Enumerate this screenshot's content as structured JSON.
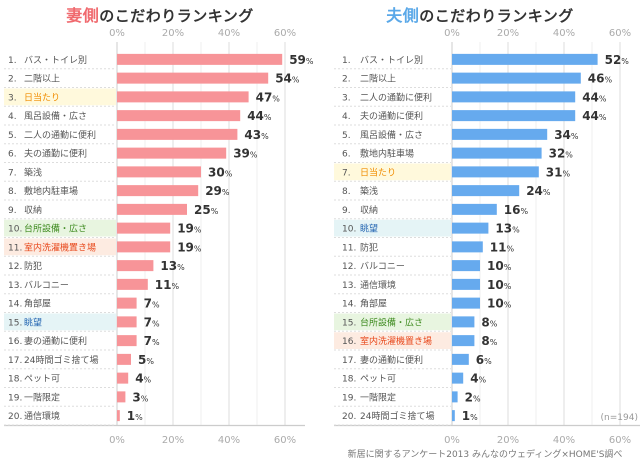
{
  "colors": {
    "wife_bar": "#f79498",
    "husband_bar": "#66aaee",
    "wife_accent": "#f0696e",
    "husband_accent": "#5aa8e8",
    "highlight_yellow_bg": "#fff9dc",
    "highlight_yellow_text": "#f08c00",
    "highlight_green_bg": "#e8f5e0",
    "highlight_green_text": "#3d8a1e",
    "highlight_orange_bg": "#fdebe1",
    "highlight_orange_text": "#e8481c",
    "highlight_blue_bg": "#e5f4f6",
    "highlight_blue_text": "#2a6ab4"
  },
  "footer": "新居に関するアンケート2013 みんなのウェディング×HOME'S調べ",
  "chart_data": [
    {
      "type": "bar",
      "orientation": "horizontal",
      "title": "妻側のこだわりランキング",
      "title_accent": "妻側",
      "title_rest": "のこだわりランキング",
      "xlabel": "",
      "ylabel": "",
      "xlim": [
        0,
        60
      ],
      "xticks": [
        "0%",
        "20%",
        "40%",
        "60%"
      ],
      "grid": true,
      "value_suffix": "%",
      "ranks": [
        "1.",
        "2.",
        "3.",
        "4.",
        "5.",
        "6.",
        "7.",
        "8.",
        "9.",
        "10.",
        "11.",
        "12.",
        "13.",
        "14.",
        "15.",
        "16.",
        "17.",
        "18.",
        "19.",
        "20."
      ],
      "categories": [
        "バス・トイレ別",
        "二階以上",
        "日当たり",
        "風呂設備・広さ",
        "二人の通勤に便利",
        "夫の通勤に便利",
        "築浅",
        "敷地内駐車場",
        "収納",
        "台所設備・広さ",
        "室内洗濯機置き場",
        "防犯",
        "バルコニー",
        "角部屋",
        "眺望",
        "妻の通勤に便利",
        "24時間ゴミ捨て場",
        "ペット可",
        "一階限定",
        "通信環境"
      ],
      "values": [
        59,
        54,
        47,
        44,
        43,
        39,
        30,
        29,
        25,
        19,
        19,
        13,
        11,
        7,
        7,
        7,
        5,
        4,
        3,
        1
      ],
      "highlights": {
        "2": "yellow",
        "9": "green",
        "10": "orange",
        "14": "blue"
      }
    },
    {
      "type": "bar",
      "orientation": "horizontal",
      "title": "夫側のこだわりランキング",
      "title_accent": "夫側",
      "title_rest": "のこだわりランキング",
      "xlabel": "",
      "ylabel": "",
      "xlim": [
        0,
        60
      ],
      "xticks": [
        "0%",
        "20%",
        "40%",
        "60%"
      ],
      "grid": true,
      "value_suffix": "%",
      "note": "(n=194)",
      "ranks": [
        "1.",
        "2.",
        "3.",
        "4.",
        "5.",
        "6.",
        "7.",
        "8.",
        "9.",
        "10.",
        "11.",
        "12.",
        "13.",
        "14.",
        "15.",
        "16.",
        "17.",
        "18.",
        "19.",
        "20."
      ],
      "categories": [
        "バス・トイレ別",
        "二階以上",
        "二人の通勤に便利",
        "夫の通勤に便利",
        "風呂設備・広さ",
        "敷地内駐車場",
        "日当たり",
        "築浅",
        "収納",
        "眺望",
        "防犯",
        "バルコニー",
        "通信環境",
        "角部屋",
        "台所設備・広さ",
        "室内洗濯機置き場",
        "妻の通勤に便利",
        "ペット可",
        "一階限定",
        "24時間ゴミ捨て場"
      ],
      "values": [
        52,
        46,
        44,
        44,
        34,
        32,
        31,
        24,
        16,
        13,
        11,
        10,
        10,
        10,
        8,
        8,
        6,
        4,
        2,
        1
      ],
      "highlights": {
        "6": "yellow",
        "9": "blue",
        "14": "green",
        "15": "orange"
      }
    }
  ]
}
